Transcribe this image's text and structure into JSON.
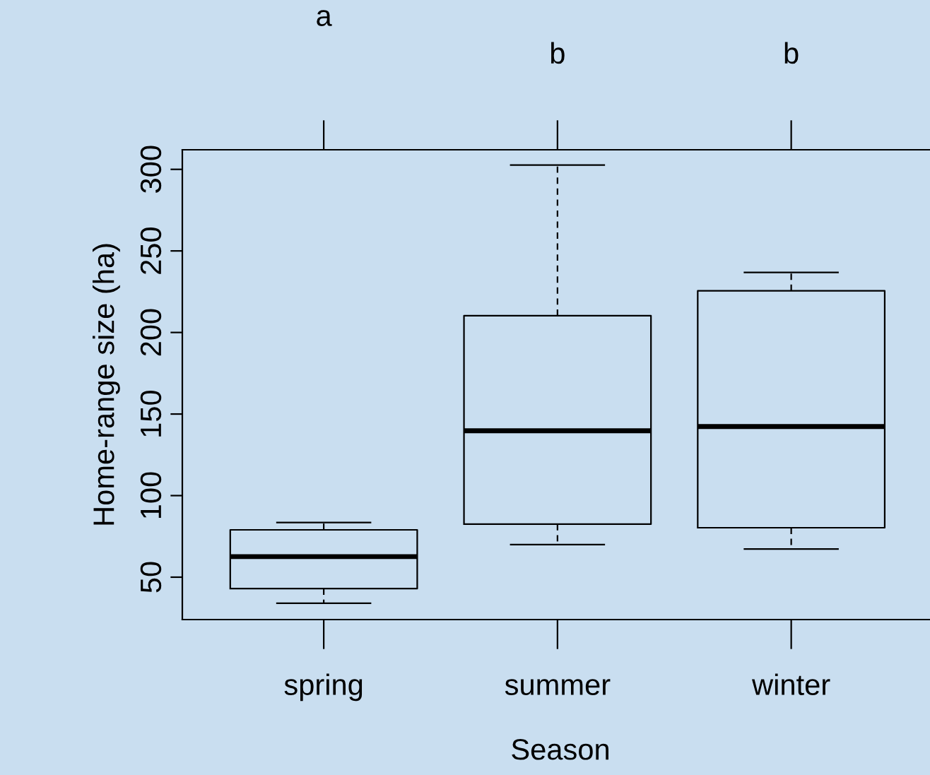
{
  "chart_data": {
    "type": "box",
    "xlabel": "Season",
    "ylabel": "Home-range size (ha)",
    "categories": [
      "spring",
      "summer",
      "winter"
    ],
    "boxes": [
      {
        "low": 34,
        "q1": 43,
        "median": 62.6,
        "q3": 79,
        "high": 83.5
      },
      {
        "low": 70,
        "q1": 82.5,
        "median": 139.7,
        "q3": 210.3,
        "high": 302.6
      },
      {
        "low": 67.3,
        "q1": 80.3,
        "median": 142.3,
        "q3": 225.5,
        "high": 236.8
      }
    ],
    "ylim": [
      24,
      312
    ],
    "yticks": [
      50,
      100,
      150,
      200,
      250,
      300
    ],
    "grid": false,
    "legend": false,
    "annotations": [
      "a",
      "b",
      "b"
    ]
  }
}
